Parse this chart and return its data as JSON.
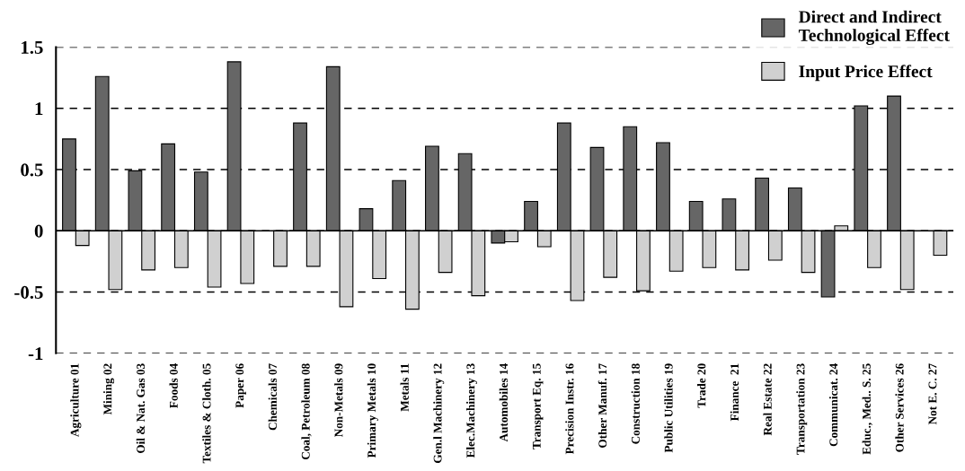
{
  "chart_data": {
    "type": "bar",
    "categories": [
      "Agriculture 01",
      "Mining 02",
      "Oil & Nat. Gas 03",
      "Foods 04",
      "Textiles & Cloth. 05",
      "Paper 06",
      "Chemicals 07",
      "Coal, Petroleum 08",
      "Non-Metals 09",
      "Primary Metals 10",
      "Metals 11",
      "Gen.l Machinery 12",
      "Elec.Machinery 13",
      "Automobiles 14",
      "Transport Eq. 15",
      "Precision Instr. 16",
      "Other Manuf. 17",
      "Construction 18",
      "Public Utilities 19",
      "Trade 20",
      "Finance  21",
      "Real Estate 22",
      "Transportation 23",
      "Communicat. 24",
      "Educ., Med.. S. 25",
      "Other Services 26",
      "Not E. C. 27"
    ],
    "series": [
      {
        "name": "Direct and Indirect\nTechnological Effect",
        "color": "#666666",
        "values": [
          0.75,
          1.26,
          0.49,
          0.71,
          0.48,
          1.38,
          null,
          0.88,
          1.34,
          0.18,
          0.41,
          0.69,
          0.63,
          -0.1,
          0.24,
          0.88,
          0.68,
          0.85,
          0.72,
          0.24,
          0.26,
          0.43,
          0.35,
          -0.54,
          1.02,
          1.1,
          null
        ]
      },
      {
        "name": "Input Price Effect",
        "color": "#d0d0d0",
        "values": [
          -0.12,
          -0.48,
          -0.32,
          -0.3,
          -0.46,
          -0.43,
          -0.29,
          -0.29,
          -0.62,
          -0.39,
          -0.64,
          -0.34,
          -0.53,
          -0.09,
          -0.13,
          -0.57,
          -0.38,
          -0.49,
          -0.33,
          -0.3,
          -0.32,
          -0.24,
          -0.34,
          0.04,
          -0.3,
          -0.48,
          -0.2
        ]
      }
    ],
    "ylim": [
      -1,
      1.5
    ],
    "yticks": [
      -1,
      -0.5,
      0,
      0.5,
      1,
      1.5
    ],
    "grid": "y",
    "legend": "top right"
  }
}
